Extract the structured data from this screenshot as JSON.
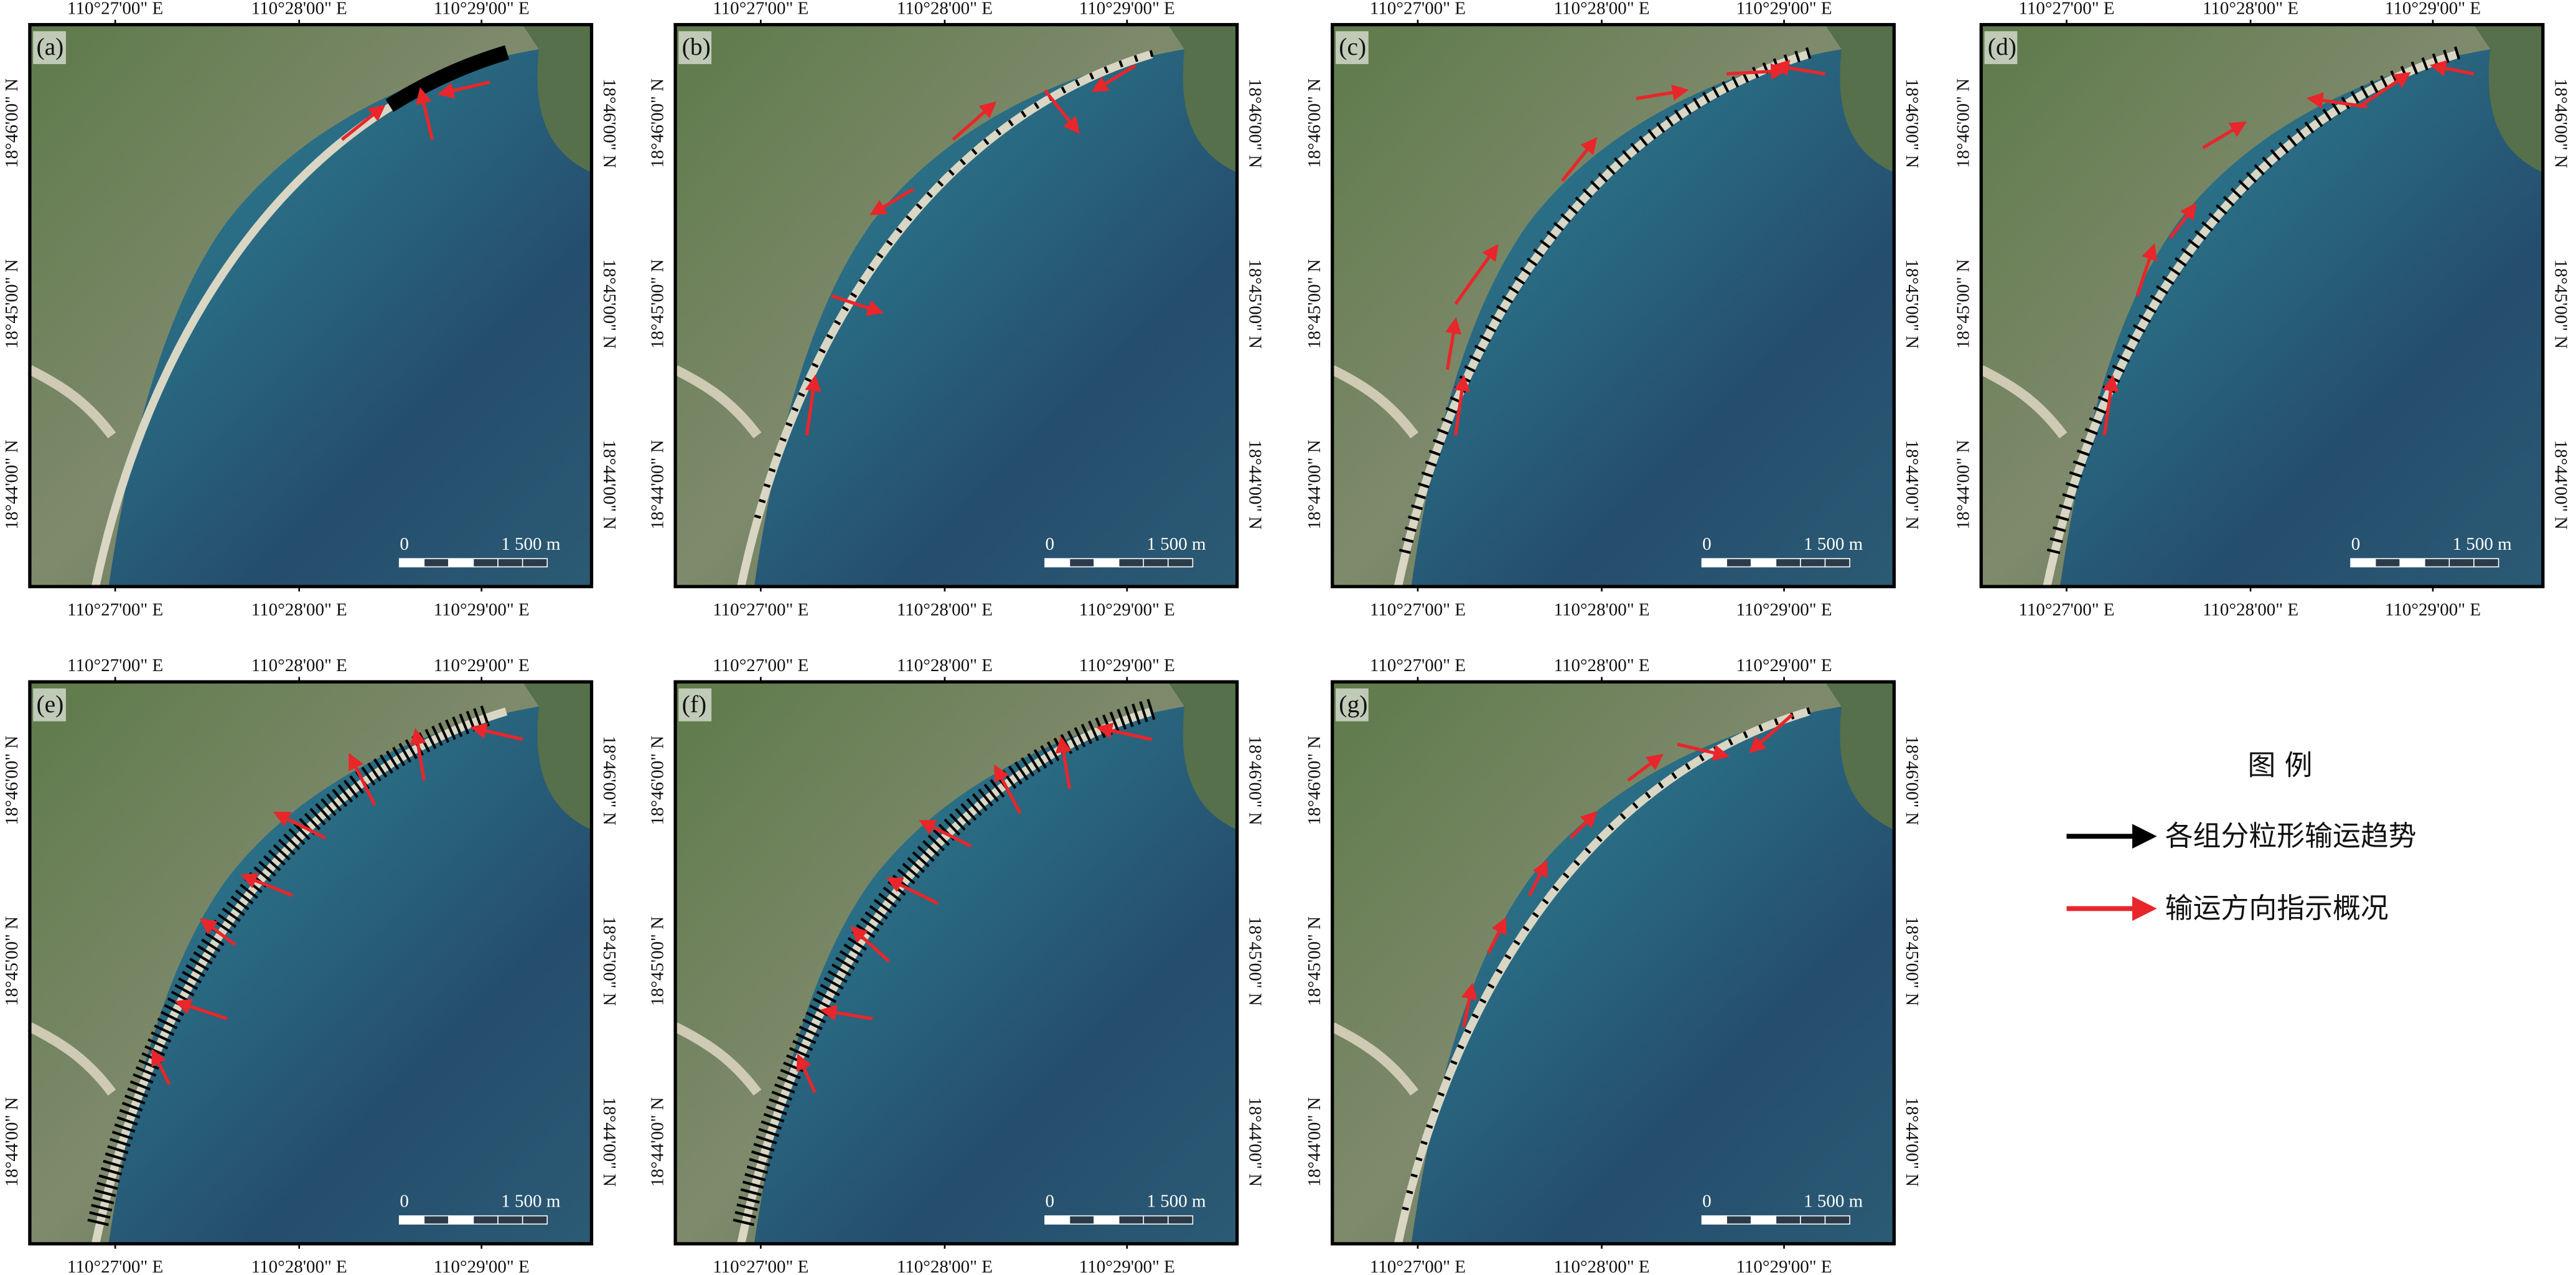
{
  "panels": [
    {
      "label": "(a)"
    },
    {
      "label": "(b)"
    },
    {
      "label": "(c)"
    },
    {
      "label": "(d)"
    },
    {
      "label": "(e)"
    },
    {
      "label": "(f)"
    },
    {
      "label": "(g)"
    }
  ],
  "x_labels": [
    "110°27'00\" E",
    "110°28'00\" E",
    "110°29'00\" E"
  ],
  "y_labels": [
    "18°46'00\" N",
    "18°45'00\" N",
    "18°44'00\" N"
  ],
  "scale_bar": {
    "zero": "0",
    "length": "1 500 m"
  },
  "legend": {
    "title": "图 例",
    "items": [
      "各组分粒形输运趋势",
      "输运方向指示概况"
    ]
  }
}
